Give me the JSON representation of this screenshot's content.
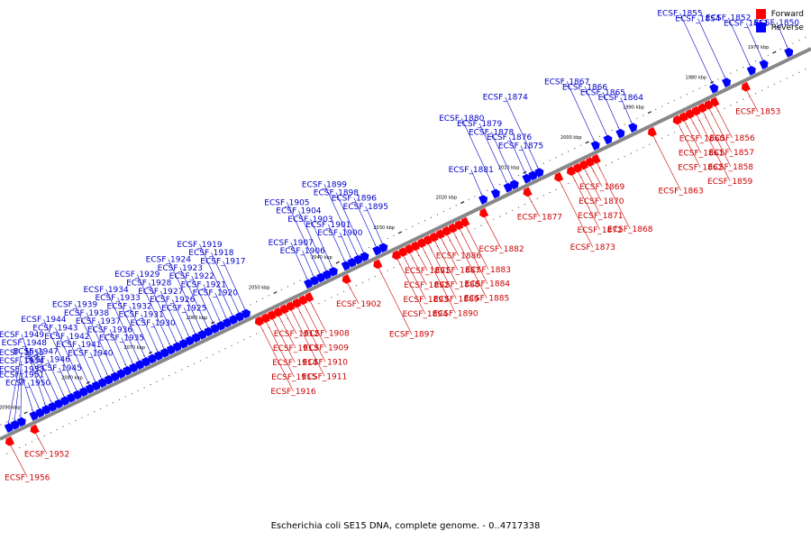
{
  "colors": {
    "forward": "#ff0000",
    "reverse": "#0000ff",
    "forward_label": "#cc0000",
    "reverse_label": "#0000cc",
    "backbone": "#888888"
  },
  "legend": {
    "forward": "Forward",
    "reverse": "Reverse"
  },
  "caption": "Escherichia coli SE15 DNA, complete genome. - 0..4717338",
  "chart_data": {
    "type": "linear-genome-map",
    "axis_start_kbp": 1965,
    "axis_end_kbp": 2095,
    "ticks": [
      {
        "kbp": 1970,
        "label": "1970 kbp"
      },
      {
        "kbp": 1980,
        "label": "1980 kbp"
      },
      {
        "kbp": 1990,
        "label": "1990 kbp"
      },
      {
        "kbp": 2000,
        "label": "2000 kbp"
      },
      {
        "kbp": 2010,
        "label": "2010 kbp"
      },
      {
        "kbp": 2020,
        "label": "2020 kbp"
      },
      {
        "kbp": 2030,
        "label": "2030 kbp"
      },
      {
        "kbp": 2040,
        "label": "2040 kbp"
      },
      {
        "kbp": 2050,
        "label": "2050 kbp"
      },
      {
        "kbp": 2060,
        "label": "2060 kbp"
      },
      {
        "kbp": 2070,
        "label": "2070 kbp"
      },
      {
        "kbp": 2080,
        "label": "2080 kbp"
      },
      {
        "kbp": 2090,
        "label": "2090 kbp"
      }
    ],
    "genes": [
      {
        "id": "ECSF_1850",
        "strand": "reverse",
        "pos_kbp": 1968
      },
      {
        "id": "ECSF_1851",
        "strand": "reverse",
        "pos_kbp": 1972
      },
      {
        "id": "ECSF_1852",
        "strand": "reverse",
        "pos_kbp": 1974
      },
      {
        "id": "ECSF_1853",
        "strand": "forward",
        "pos_kbp": 1976
      },
      {
        "id": "ECSF_1854",
        "strand": "reverse",
        "pos_kbp": 1978
      },
      {
        "id": "ECSF_1855",
        "strand": "reverse",
        "pos_kbp": 1980
      },
      {
        "id": "ECSF_1856",
        "strand": "forward",
        "pos_kbp": 1981
      },
      {
        "id": "ECSF_1857",
        "strand": "forward",
        "pos_kbp": 1982
      },
      {
        "id": "ECSF_1858",
        "strand": "forward",
        "pos_kbp": 1983
      },
      {
        "id": "ECSF_1859",
        "strand": "forward",
        "pos_kbp": 1984
      },
      {
        "id": "ECSF_1860",
        "strand": "forward",
        "pos_kbp": 1985
      },
      {
        "id": "ECSF_1861",
        "strand": "forward",
        "pos_kbp": 1986
      },
      {
        "id": "ECSF_1862",
        "strand": "forward",
        "pos_kbp": 1987
      },
      {
        "id": "ECSF_1863",
        "strand": "forward",
        "pos_kbp": 1991
      },
      {
        "id": "ECSF_1864",
        "strand": "reverse",
        "pos_kbp": 1993
      },
      {
        "id": "ECSF_1865",
        "strand": "reverse",
        "pos_kbp": 1995
      },
      {
        "id": "ECSF_1866",
        "strand": "reverse",
        "pos_kbp": 1997
      },
      {
        "id": "ECSF_1867",
        "strand": "reverse",
        "pos_kbp": 1999
      },
      {
        "id": "ECSF_1868",
        "strand": "forward",
        "pos_kbp": 2000
      },
      {
        "id": "ECSF_1869",
        "strand": "forward",
        "pos_kbp": 2001
      },
      {
        "id": "ECSF_1870",
        "strand": "forward",
        "pos_kbp": 2002
      },
      {
        "id": "ECSF_1871",
        "strand": "forward",
        "pos_kbp": 2003
      },
      {
        "id": "ECSF_1872",
        "strand": "forward",
        "pos_kbp": 2004
      },
      {
        "id": "ECSF_1873",
        "strand": "forward",
        "pos_kbp": 2006
      },
      {
        "id": "ECSF_1874",
        "strand": "reverse",
        "pos_kbp": 2008
      },
      {
        "id": "ECSF_1875",
        "strand": "reverse",
        "pos_kbp": 2009
      },
      {
        "id": "ECSF_1876",
        "strand": "reverse",
        "pos_kbp": 2010
      },
      {
        "id": "ECSF_1877",
        "strand": "forward",
        "pos_kbp": 2011
      },
      {
        "id": "ECSF_1878",
        "strand": "reverse",
        "pos_kbp": 2012
      },
      {
        "id": "ECSF_1879",
        "strand": "reverse",
        "pos_kbp": 2013
      },
      {
        "id": "ECSF_1880",
        "strand": "reverse",
        "pos_kbp": 2015
      },
      {
        "id": "ECSF_1881",
        "strand": "reverse",
        "pos_kbp": 2017
      },
      {
        "id": "ECSF_1882",
        "strand": "forward",
        "pos_kbp": 2018
      },
      {
        "id": "ECSF_1883",
        "strand": "forward",
        "pos_kbp": 2021
      },
      {
        "id": "ECSF_1884",
        "strand": "forward",
        "pos_kbp": 2022
      },
      {
        "id": "ECSF_1885",
        "strand": "forward",
        "pos_kbp": 2023
      },
      {
        "id": "ECSF_1886",
        "strand": "forward",
        "pos_kbp": 2024
      },
      {
        "id": "ECSF_1887",
        "strand": "forward",
        "pos_kbp": 2025
      },
      {
        "id": "ECSF_1888",
        "strand": "forward",
        "pos_kbp": 2026
      },
      {
        "id": "ECSF_1889",
        "strand": "forward",
        "pos_kbp": 2027
      },
      {
        "id": "ECSF_1890",
        "strand": "forward",
        "pos_kbp": 2028
      },
      {
        "id": "ECSF_1891",
        "strand": "forward",
        "pos_kbp": 2029
      },
      {
        "id": "ECSF_1892",
        "strand": "forward",
        "pos_kbp": 2030
      },
      {
        "id": "ECSF_1893",
        "strand": "forward",
        "pos_kbp": 2031
      },
      {
        "id": "ECSF_1894",
        "strand": "forward",
        "pos_kbp": 2032
      },
      {
        "id": "ECSF_1895",
        "strand": "reverse",
        "pos_kbp": 2033
      },
      {
        "id": "ECSF_1896",
        "strand": "reverse",
        "pos_kbp": 2034
      },
      {
        "id": "ECSF_1897",
        "strand": "forward",
        "pos_kbp": 2035
      },
      {
        "id": "ECSF_1898",
        "strand": "reverse",
        "pos_kbp": 2036
      },
      {
        "id": "ECSF_1899",
        "strand": "reverse",
        "pos_kbp": 2037
      },
      {
        "id": "ECSF_1900",
        "strand": "reverse",
        "pos_kbp": 2038
      },
      {
        "id": "ECSF_1901",
        "strand": "reverse",
        "pos_kbp": 2039
      },
      {
        "id": "ECSF_1902",
        "strand": "forward",
        "pos_kbp": 2040
      },
      {
        "id": "ECSF_1903",
        "strand": "reverse",
        "pos_kbp": 2041
      },
      {
        "id": "ECSF_1904",
        "strand": "reverse",
        "pos_kbp": 2042
      },
      {
        "id": "ECSF_1905",
        "strand": "reverse",
        "pos_kbp": 2043
      },
      {
        "id": "ECSF_1906",
        "strand": "reverse",
        "pos_kbp": 2044
      },
      {
        "id": "ECSF_1907",
        "strand": "reverse",
        "pos_kbp": 2045
      },
      {
        "id": "ECSF_1908",
        "strand": "forward",
        "pos_kbp": 2046
      },
      {
        "id": "ECSF_1909",
        "strand": "forward",
        "pos_kbp": 2047
      },
      {
        "id": "ECSF_1910",
        "strand": "forward",
        "pos_kbp": 2048
      },
      {
        "id": "ECSF_1911",
        "strand": "forward",
        "pos_kbp": 2049
      },
      {
        "id": "ECSF_1912",
        "strand": "forward",
        "pos_kbp": 2050
      },
      {
        "id": "ECSF_1913",
        "strand": "forward",
        "pos_kbp": 2051
      },
      {
        "id": "ECSF_1914",
        "strand": "forward",
        "pos_kbp": 2052
      },
      {
        "id": "ECSF_1915",
        "strand": "forward",
        "pos_kbp": 2053
      },
      {
        "id": "ECSF_1916",
        "strand": "forward",
        "pos_kbp": 2054
      },
      {
        "id": "ECSF_1917",
        "strand": "reverse",
        "pos_kbp": 2055
      },
      {
        "id": "ECSF_1918",
        "strand": "reverse",
        "pos_kbp": 2056
      },
      {
        "id": "ECSF_1919",
        "strand": "reverse",
        "pos_kbp": 2057
      },
      {
        "id": "ECSF_1920",
        "strand": "reverse",
        "pos_kbp": 2058
      },
      {
        "id": "ECSF_1921",
        "strand": "reverse",
        "pos_kbp": 2059
      },
      {
        "id": "ECSF_1922",
        "strand": "reverse",
        "pos_kbp": 2060
      },
      {
        "id": "ECSF_1923",
        "strand": "reverse",
        "pos_kbp": 2061
      },
      {
        "id": "ECSF_1924",
        "strand": "reverse",
        "pos_kbp": 2062
      },
      {
        "id": "ECSF_1925",
        "strand": "reverse",
        "pos_kbp": 2063
      },
      {
        "id": "ECSF_1926",
        "strand": "reverse",
        "pos_kbp": 2064
      },
      {
        "id": "ECSF_1927",
        "strand": "reverse",
        "pos_kbp": 2065
      },
      {
        "id": "ECSF_1928",
        "strand": "reverse",
        "pos_kbp": 2066
      },
      {
        "id": "ECSF_1929",
        "strand": "reverse",
        "pos_kbp": 2067
      },
      {
        "id": "ECSF_1930",
        "strand": "reverse",
        "pos_kbp": 2068
      },
      {
        "id": "ECSF_1931",
        "strand": "reverse",
        "pos_kbp": 2069
      },
      {
        "id": "ECSF_1932",
        "strand": "reverse",
        "pos_kbp": 2070
      },
      {
        "id": "ECSF_1933",
        "strand": "reverse",
        "pos_kbp": 2071
      },
      {
        "id": "ECSF_1934",
        "strand": "reverse",
        "pos_kbp": 2072
      },
      {
        "id": "ECSF_1935",
        "strand": "reverse",
        "pos_kbp": 2073
      },
      {
        "id": "ECSF_1936",
        "strand": "reverse",
        "pos_kbp": 2074
      },
      {
        "id": "ECSF_1937",
        "strand": "reverse",
        "pos_kbp": 2075
      },
      {
        "id": "ECSF_1938",
        "strand": "reverse",
        "pos_kbp": 2076
      },
      {
        "id": "ECSF_1939",
        "strand": "reverse",
        "pos_kbp": 2077
      },
      {
        "id": "ECSF_1940",
        "strand": "reverse",
        "pos_kbp": 2078
      },
      {
        "id": "ECSF_1941",
        "strand": "reverse",
        "pos_kbp": 2079
      },
      {
        "id": "ECSF_1942",
        "strand": "reverse",
        "pos_kbp": 2080
      },
      {
        "id": "ECSF_1943",
        "strand": "reverse",
        "pos_kbp": 2081
      },
      {
        "id": "ECSF_1944",
        "strand": "reverse",
        "pos_kbp": 2082
      },
      {
        "id": "ECSF_1945",
        "strand": "reverse",
        "pos_kbp": 2083
      },
      {
        "id": "ECSF_1946",
        "strand": "reverse",
        "pos_kbp": 2084
      },
      {
        "id": "ECSF_1947",
        "strand": "reverse",
        "pos_kbp": 2085
      },
      {
        "id": "ECSF_1948",
        "strand": "reverse",
        "pos_kbp": 2086
      },
      {
        "id": "ECSF_1949",
        "strand": "reverse",
        "pos_kbp": 2087
      },
      {
        "id": "ECSF_1950",
        "strand": "reverse",
        "pos_kbp": 2088
      },
      {
        "id": "ECSF_1951",
        "strand": "reverse",
        "pos_kbp": 2089
      },
      {
        "id": "ECSF_1952",
        "strand": "forward",
        "pos_kbp": 2090
      },
      {
        "id": "ECSF_1953",
        "strand": "reverse",
        "pos_kbp": 2091
      },
      {
        "id": "ECSF_1954",
        "strand": "reverse",
        "pos_kbp": 2092
      },
      {
        "id": "ECSF_1955",
        "strand": "reverse",
        "pos_kbp": 2093
      },
      {
        "id": "ECSF_1956",
        "strand": "forward",
        "pos_kbp": 2094
      }
    ]
  }
}
